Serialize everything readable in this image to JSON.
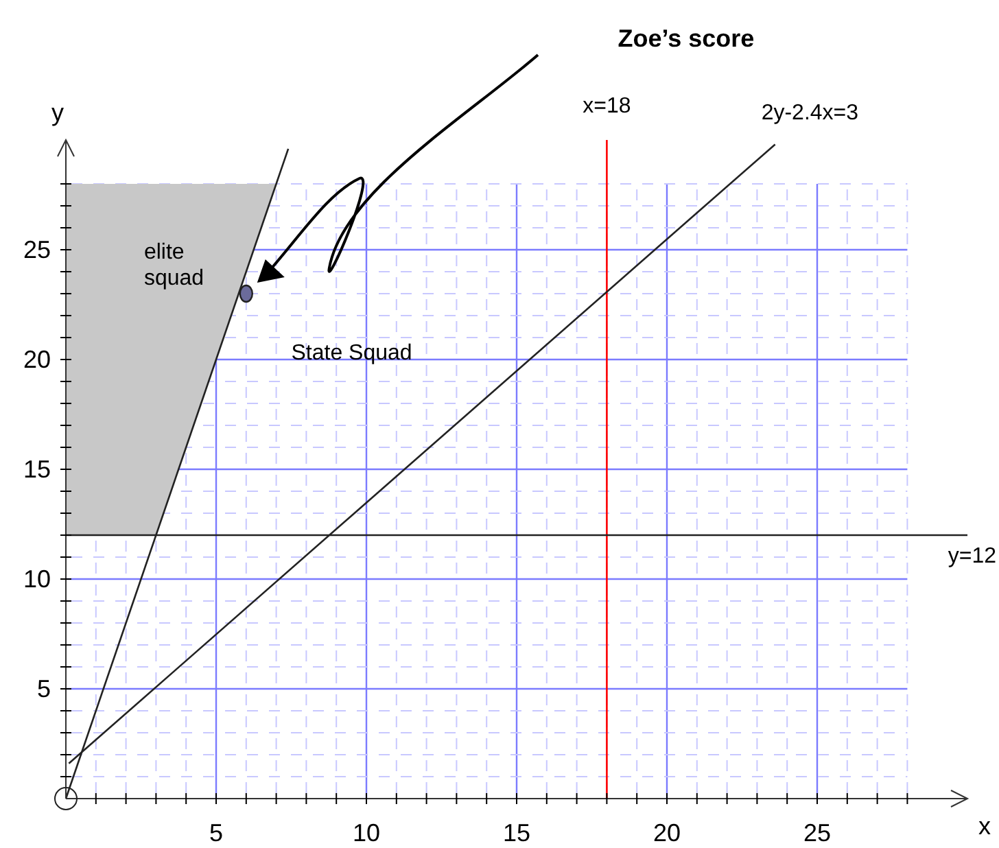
{
  "chart_data": {
    "type": "line",
    "xlabel": "x",
    "ylabel": "y",
    "xlim": [
      0,
      30
    ],
    "ylim": [
      0,
      30
    ],
    "xticks": [
      {
        "value": 1,
        "label": null
      },
      {
        "value": 2,
        "label": null
      },
      {
        "value": 3,
        "label": null
      },
      {
        "value": 4,
        "label": null
      },
      5,
      {
        "value": 6,
        "label": null
      },
      {
        "value": 7,
        "label": null
      },
      {
        "value": 8,
        "label": null
      },
      {
        "value": 9,
        "label": null
      },
      10,
      {
        "value": 11,
        "label": null
      },
      {
        "value": 12,
        "label": null
      },
      {
        "value": 13,
        "label": null
      },
      {
        "value": 14,
        "label": null
      },
      15,
      {
        "value": 16,
        "label": null
      },
      {
        "value": 17,
        "label": null
      },
      {
        "value": 18,
        "label": null
      },
      {
        "value": 19,
        "label": null
      },
      20,
      {
        "value": 21,
        "label": null
      },
      {
        "value": 22,
        "label": null
      },
      {
        "value": 23,
        "label": null
      },
      {
        "value": 24,
        "label": null
      },
      25,
      {
        "value": 26,
        "label": null
      },
      {
        "value": 27,
        "label": null
      },
      {
        "value": 28,
        "label": null
      }
    ],
    "yticks": [
      {
        "value": 1,
        "label": null
      },
      {
        "value": 2,
        "label": null
      },
      {
        "value": 3,
        "label": null
      },
      {
        "value": 4,
        "label": null
      },
      5,
      {
        "value": 6,
        "label": null
      },
      {
        "value": 7,
        "label": null
      },
      {
        "value": 8,
        "label": null
      },
      {
        "value": 9,
        "label": null
      },
      10,
      {
        "value": 11,
        "label": null
      },
      {
        "value": 12,
        "label": null
      },
      {
        "value": 13,
        "label": null
      },
      {
        "value": 14,
        "label": null
      },
      15,
      {
        "value": 16,
        "label": null
      },
      {
        "value": 17,
        "label": null
      },
      {
        "value": 18,
        "label": null
      },
      {
        "value": 19,
        "label": null
      },
      20,
      {
        "value": 21,
        "label": null
      },
      {
        "value": 22,
        "label": null
      },
      {
        "value": 23,
        "label": null
      },
      {
        "value": 24,
        "label": null
      },
      25,
      {
        "value": 26,
        "label": null
      },
      {
        "value": 27,
        "label": null
      },
      {
        "value": 28,
        "label": null
      }
    ],
    "grid": true,
    "series": [
      {
        "type": "area",
        "color": "#c8c8c8",
        "x": [
          0,
          1.5,
          3,
          5,
          7
        ],
        "values": [
          null,
          null,
          null,
          null,
          null
        ],
        "lower": [
          12,
          12,
          12,
          20,
          28
        ],
        "upper": [
          28,
          28,
          28,
          28,
          28
        ]
      },
      {
        "color": "#222222",
        "x": [
          0,
          7.4
        ],
        "values": [
          0,
          29.6
        ]
      },
      {
        "name": "2y-2.4x=3",
        "color": "#222222",
        "x": [
          0.1,
          23.6
        ],
        "values": [
          1.6,
          29.8
        ]
      },
      {
        "type": "scatter",
        "color": "#6b6b9b",
        "x": [
          6
        ],
        "values": [
          23
        ]
      }
    ],
    "ref_lines": [
      {
        "axis": "x",
        "value": 18,
        "label": "x=18",
        "color": "#ff0000"
      },
      {
        "axis": "y",
        "value": 12,
        "label": "y=12",
        "color": "#222222"
      }
    ],
    "annotations": [
      "Zoe’s score",
      "elite squad",
      "State Squad"
    ]
  }
}
